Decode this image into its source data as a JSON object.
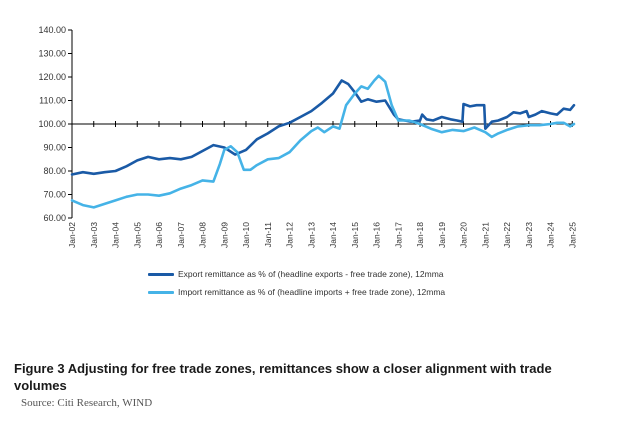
{
  "figure": {
    "caption": "Figure 3 Adjusting for free trade zones, remittances show a closer alignment with trade volumes",
    "source": "Source:  Citi Research, WIND"
  },
  "colors": {
    "export": "#1a5aa6",
    "import": "#45b3e7",
    "axis": "#000000"
  },
  "chart_data": {
    "type": "line",
    "title": "",
    "xlabel": "",
    "ylabel": "",
    "ylim": [
      60,
      140
    ],
    "yticks": [
      "60.00",
      "70.00",
      "80.00",
      "90.00",
      "100.00",
      "110.00",
      "120.00",
      "130.00",
      "140.00"
    ],
    "baseline": 100,
    "xlim": [
      2002.0,
      2025.08
    ],
    "xticks": [
      "Jan-02",
      "Jan-03",
      "Jan-04",
      "Jan-05",
      "Jan-06",
      "Jan-07",
      "Jan-08",
      "Jan-09",
      "Jan-10",
      "Jan-11",
      "Jan-12",
      "Jan-13",
      "Jan-14",
      "Jan-15",
      "Jan-16",
      "Jan-17",
      "Jan-18",
      "Jan-19",
      "Jan-20",
      "Jan-21",
      "Jan-22",
      "Jan-23",
      "Jan-24",
      "Jan-25"
    ],
    "legend_position": "bottom",
    "series": [
      {
        "name": "Export remittance as % of (headline exports - free trade zone), 12mma",
        "x": [
          2002.0,
          2002.5,
          2003.0,
          2003.5,
          2004.0,
          2004.5,
          2005.0,
          2005.5,
          2006.0,
          2006.5,
          2007.0,
          2007.5,
          2008.0,
          2008.5,
          2009.0,
          2009.5,
          2010.0,
          2010.5,
          2011.0,
          2011.5,
          2012.0,
          2012.5,
          2013.0,
          2013.5,
          2014.0,
          2014.4,
          2014.7,
          2015.0,
          2015.3,
          2015.6,
          2016.0,
          2016.4,
          2016.8,
          2017.0,
          2017.3,
          2017.6,
          2018.0,
          2018.1,
          2018.3,
          2018.6,
          2019.0,
          2019.4,
          2019.7,
          2019.95,
          2020.0,
          2020.3,
          2020.6,
          2020.95,
          2021.0,
          2021.3,
          2021.6,
          2022.0,
          2022.3,
          2022.6,
          2022.9,
          2023.0,
          2023.3,
          2023.6,
          2024.0,
          2024.3,
          2024.6,
          2024.9,
          2025.08
        ],
        "values": [
          78.5,
          79.5,
          78.8,
          79.5,
          80.0,
          82.0,
          84.5,
          86.0,
          85.0,
          85.5,
          85.0,
          86.0,
          88.5,
          91.0,
          90.0,
          87.0,
          89.0,
          93.5,
          96.0,
          99.0,
          100.5,
          103.0,
          105.5,
          109.0,
          113.0,
          118.5,
          117.0,
          113.5,
          109.5,
          110.5,
          109.5,
          110.0,
          104.0,
          102.0,
          101.5,
          101.0,
          101.5,
          104.0,
          102.0,
          101.5,
          103.0,
          102.0,
          101.5,
          101.0,
          108.5,
          107.5,
          108.0,
          108.0,
          98.0,
          101.0,
          101.5,
          103.0,
          105.0,
          104.5,
          105.5,
          103.0,
          104.0,
          105.5,
          104.5,
          104.0,
          106.5,
          106.0,
          108.0
        ]
      },
      {
        "name": "Import remittance as % of (headline imports + free trade zone), 12mma",
        "x": [
          2002.0,
          2002.5,
          2003.0,
          2003.5,
          2004.0,
          2004.5,
          2005.0,
          2005.5,
          2006.0,
          2006.5,
          2007.0,
          2007.5,
          2008.0,
          2008.5,
          2008.8,
          2009.0,
          2009.3,
          2009.6,
          2009.9,
          2010.2,
          2010.5,
          2011.0,
          2011.5,
          2012.0,
          2012.5,
          2013.0,
          2013.3,
          2013.6,
          2014.0,
          2014.3,
          2014.6,
          2015.0,
          2015.3,
          2015.6,
          2015.9,
          2016.1,
          2016.4,
          2016.7,
          2017.0,
          2017.5,
          2018.0,
          2018.5,
          2019.0,
          2019.5,
          2020.0,
          2020.5,
          2021.0,
          2021.3,
          2021.6,
          2022.0,
          2022.5,
          2023.0,
          2023.5,
          2024.0,
          2024.3,
          2024.6,
          2024.9,
          2025.08
        ],
        "values": [
          67.5,
          65.5,
          64.5,
          66.0,
          67.5,
          69.0,
          70.0,
          70.0,
          69.5,
          70.5,
          72.5,
          74.0,
          76.0,
          75.5,
          83.0,
          89.0,
          90.5,
          88.0,
          80.5,
          80.5,
          82.5,
          85.0,
          85.5,
          88.0,
          93.0,
          97.0,
          98.5,
          96.5,
          99.0,
          98.0,
          108.0,
          113.0,
          116.0,
          115.0,
          118.5,
          120.5,
          118.0,
          108.0,
          101.5,
          101.5,
          100.0,
          98.0,
          96.5,
          97.5,
          97.0,
          98.5,
          96.5,
          94.5,
          96.0,
          97.5,
          99.0,
          99.5,
          99.5,
          100.0,
          100.5,
          100.5,
          99.0,
          100.0
        ]
      }
    ]
  }
}
